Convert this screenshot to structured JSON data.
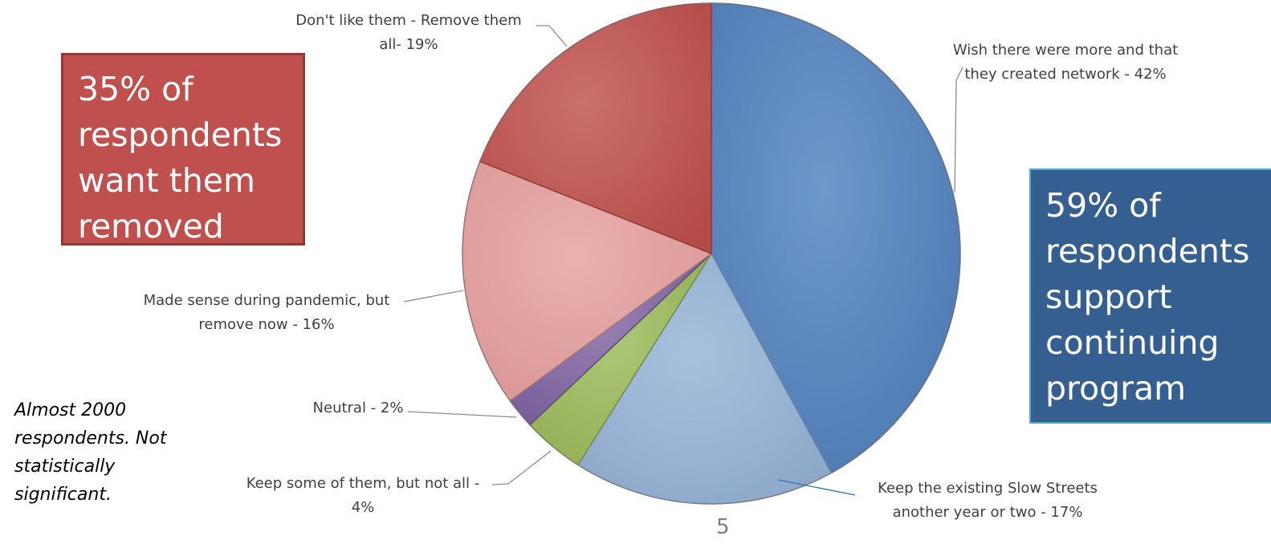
{
  "chart_data": {
    "type": "pie",
    "start_angle_deg": 0,
    "direction": "clockwise",
    "slices": [
      {
        "label": "Wish there were more and that they created network",
        "value": 42,
        "display": "Wish there were more and that",
        "display2": "they created network - 42%",
        "color": "#4f81bd"
      },
      {
        "label": "Keep the existing Slow Streets another year or two",
        "value": 17,
        "display": "Keep the existing Slow Streets",
        "display2": "another year or two - 17%",
        "color": "#95b3d7"
      },
      {
        "label": "Keep some of them, but not all",
        "value": 4,
        "display": "Keep some of them, but not all -",
        "display2": "4%",
        "color": "#9bbb59"
      },
      {
        "label": "Neutral",
        "value": 2,
        "display": "Neutral -  2%",
        "display2": "",
        "color": "#8064a2"
      },
      {
        "label": "Made sense during pandemic, but remove now",
        "value": 16,
        "display": "Made sense during pandemic, but",
        "display2": "remove now -  16%",
        "color": "#e6a09d"
      },
      {
        "label": "Don't like them - Remove them all",
        "value": 19,
        "display": "Don't like them - Remove them",
        "display2": "all- 19%",
        "color": "#c0504d"
      }
    ]
  },
  "callouts": {
    "removed": "35% of\nrespondents\nwant them\nremoved",
    "support": "59% of\nrespondents\nsupport\ncontinuing\nprogram"
  },
  "note": "Almost 2000\nrespondents. Not\nstatistically\nsignificant.",
  "page_number": "5"
}
